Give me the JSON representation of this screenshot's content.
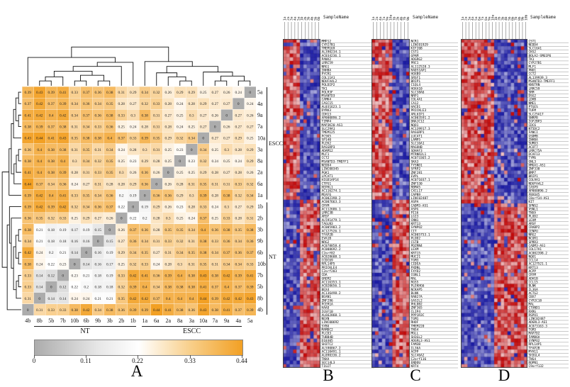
{
  "chart_data": [
    {
      "id": "panelA",
      "type": "heatmap",
      "letter": "A",
      "description_colors": {
        "low": "#ACACAC",
        "mid": "#FFFFFF",
        "high": "#F2A024",
        "diagonal": "#ACACAC"
      },
      "columns": [
        "4b",
        "8b",
        "5b",
        "7b",
        "10b",
        "6b",
        "9b",
        "3b",
        "2b",
        "1b",
        "1a",
        "6a",
        "2a",
        "8a",
        "3a",
        "10a",
        "7a",
        "9a",
        "4a",
        "5a"
      ],
      "rows": [
        "5a",
        "4a",
        "9a",
        "7a",
        "10a",
        "3a",
        "8a",
        "2a",
        "6a",
        "1a",
        "1b",
        "2b",
        "3b",
        "9b",
        "6b",
        "10b",
        "7b",
        "5b",
        "8b",
        "4b"
      ],
      "values": [
        [
          0.39,
          0.43,
          0.39,
          0.41,
          0.33,
          0.37,
          0.36,
          0.38,
          0.31,
          0.29,
          0.34,
          0.32,
          0.26,
          0.29,
          0.29,
          0.25,
          0.27,
          0.26,
          0.24,
          0
        ],
        [
          0.37,
          0.42,
          0.37,
          0.39,
          0.34,
          0.36,
          0.34,
          0.35,
          0.28,
          0.27,
          0.32,
          0.33,
          0.28,
          0.24,
          0.28,
          0.29,
          0.27,
          0.27,
          0,
          0.24
        ],
        [
          0.41,
          0.42,
          0.4,
          0.42,
          0.34,
          0.37,
          0.36,
          0.38,
          0.33,
          0.3,
          0.38,
          0.31,
          0.27,
          0.25,
          0.3,
          0.27,
          0.26,
          0,
          0.27,
          0.26
        ],
        [
          0.38,
          0.39,
          0.37,
          0.38,
          0.31,
          0.34,
          0.33,
          0.36,
          0.25,
          0.24,
          0.28,
          0.31,
          0.28,
          0.24,
          0.25,
          0.27,
          0,
          0.26,
          0.27,
          0.27
        ],
        [
          0.43,
          0.44,
          0.41,
          0.43,
          0.35,
          0.38,
          0.38,
          0.4,
          0.37,
          0.33,
          0.39,
          0.35,
          0.29,
          0.32,
          0.34,
          0,
          0.27,
          0.27,
          0.29,
          0.25
        ],
        [
          0.36,
          0.4,
          0.38,
          0.38,
          0.31,
          0.35,
          0.31,
          0.34,
          0.24,
          0.28,
          0.3,
          0.31,
          0.25,
          0.23,
          0,
          0.34,
          0.25,
          0.3,
          0.28,
          0.29
        ],
        [
          0.38,
          0.4,
          0.38,
          0.4,
          0.3,
          0.34,
          0.32,
          0.35,
          0.25,
          0.23,
          0.29,
          0.28,
          0.25,
          0,
          0.23,
          0.32,
          0.24,
          0.25,
          0.24,
          0.29
        ],
        [
          0.41,
          0.4,
          0.38,
          0.39,
          0.28,
          0.31,
          0.33,
          0.35,
          0.3,
          0.26,
          0.36,
          0.26,
          0,
          0.25,
          0.25,
          0.29,
          0.28,
          0.27,
          0.28,
          0.26
        ],
        [
          0.44,
          0.37,
          0.34,
          0.36,
          0.24,
          0.27,
          0.31,
          0.28,
          0.28,
          0.29,
          0.36,
          0,
          0.26,
          0.28,
          0.31,
          0.35,
          0.31,
          0.31,
          0.33,
          0.32
        ],
        [
          0.39,
          0.42,
          0.4,
          0.41,
          0.33,
          0.35,
          0.34,
          0.36,
          0.2,
          0.19,
          0,
          0.36,
          0.36,
          0.29,
          0.3,
          0.39,
          0.28,
          0.38,
          0.32,
          0.34
        ],
        [
          0.39,
          0.42,
          0.39,
          0.42,
          0.32,
          0.34,
          0.36,
          0.37,
          0.22,
          0,
          0.19,
          0.29,
          0.26,
          0.23,
          0.28,
          0.33,
          0.24,
          0.3,
          0.27,
          0.29
        ],
        [
          0.36,
          0.35,
          0.32,
          0.33,
          0.25,
          0.29,
          0.27,
          0.26,
          0,
          0.22,
          0.2,
          0.28,
          0.3,
          0.25,
          0.24,
          0.37,
          0.25,
          0.33,
          0.28,
          0.31
        ],
        [
          0.38,
          0.21,
          0.18,
          0.19,
          0.17,
          0.19,
          0.15,
          0,
          0.26,
          0.37,
          0.36,
          0.28,
          0.35,
          0.35,
          0.34,
          0.4,
          0.36,
          0.38,
          0.35,
          0.38
        ],
        [
          0.34,
          0.21,
          0.18,
          0.18,
          0.16,
          0.16,
          0,
          0.15,
          0.27,
          0.36,
          0.34,
          0.31,
          0.33,
          0.32,
          0.31,
          0.38,
          0.33,
          0.36,
          0.34,
          0.36
        ],
        [
          0.42,
          0.24,
          0.2,
          0.21,
          0.14,
          0,
          0.16,
          0.19,
          0.29,
          0.34,
          0.35,
          0.27,
          0.31,
          0.34,
          0.35,
          0.38,
          0.34,
          0.37,
          0.36,
          0.37
        ],
        [
          0.38,
          0.24,
          0.22,
          0.23,
          0,
          0.14,
          0.16,
          0.17,
          0.25,
          0.32,
          0.33,
          0.24,
          0.28,
          0.3,
          0.31,
          0.35,
          0.31,
          0.34,
          0.34,
          0.33
        ],
        [
          0.33,
          0.14,
          0.12,
          0,
          0.23,
          0.21,
          0.18,
          0.19,
          0.33,
          0.42,
          0.41,
          0.36,
          0.39,
          0.4,
          0.38,
          0.43,
          0.38,
          0.42,
          0.39,
          0.41
        ],
        [
          0.33,
          0.14,
          0,
          0.12,
          0.22,
          0.2,
          0.18,
          0.18,
          0.32,
          0.39,
          0.4,
          0.34,
          0.38,
          0.38,
          0.38,
          0.41,
          0.37,
          0.4,
          0.37,
          0.39
        ],
        [
          0.31,
          0,
          0.14,
          0.14,
          0.24,
          0.24,
          0.21,
          0.21,
          0.35,
          0.42,
          0.42,
          0.37,
          0.4,
          0.4,
          0.4,
          0.44,
          0.39,
          0.42,
          0.42,
          0.43
        ],
        [
          0,
          0.31,
          0.33,
          0.33,
          0.38,
          0.42,
          0.34,
          0.38,
          0.36,
          0.39,
          0.39,
          0.44,
          0.41,
          0.38,
          0.36,
          0.43,
          0.38,
          0.41,
          0.37,
          0.39
        ]
      ],
      "col_group_labels": [
        {
          "label": "NT"
        },
        {
          "label": "ESCC"
        }
      ],
      "row_group_labels": [
        {
          "label": "ESCC"
        },
        {
          "label": "NT"
        }
      ],
      "colorbar": {
        "min": 0,
        "max": 0.44,
        "ticks": [
          "0",
          "0.11",
          "0.22",
          "0.33",
          "0.44"
        ]
      }
    },
    {
      "id": "panelB",
      "type": "heatmap",
      "letter": "B",
      "sample_header": "SampleName",
      "samples": [
        "1a",
        "2a",
        "3a",
        "4a",
        "5a",
        "1b",
        "2b",
        "3b",
        "4b",
        "5b",
        "6b"
      ],
      "tumor_cols": 5,
      "split_row": 44,
      "up_color": "#C30909",
      "down_color": "#1B1BA4",
      "genes": [
        "MMP12",
        "CYP27B1",
        "TMEM169",
        "AL390234.1",
        "AC034236.1",
        "PANX2",
        "LRRC59",
        "NRG1",
        "INHBA",
        "PYCR1",
        "COL11A1",
        "NDUFA4L2",
        "POLDIP2",
        "TK1",
        "POLR3F",
        "MSANTD3",
        "CAMK4",
        "CASC15",
        "AL031623.1",
        "DYRK3",
        "CDH13",
        "AP000896.2",
        "TIMP4",
        "MAP3K20-AS1",
        "SLC29A1",
        "TMEM125",
        "PCSK5",
        "SP140",
        "PLEK2",
        "RASGRP3",
        "ADAM12",
        "MLF1",
        "CCT2",
        "MSANTD3-TMEFF1",
        "NEDD4",
        "LINC00345",
        "PGK1",
        "LPCAT1",
        "HIGD1AP14",
        "CTPS1",
        "HEPHL1",
        "AC116274.1",
        "MEAF6",
        "AC002398.2",
        "AC007663.3",
        "CRYM",
        "AC112686.1",
        "LRRC3B",
        "ARSF",
        "AL591479.1",
        "TAGLN3",
        "AC005903.2",
        "AC127526.1",
        "TFAP2B",
        "EVA1B",
        "NRG2",
        "AC078858.4",
        "AC008692.2",
        "C2orf82",
        "AC028608.1",
        "CCDC69",
        "RPL14P5",
        "PRICKLE4",
        "C2orf203",
        "CDA",
        "GREM2",
        "AC116353.1",
        "AC020656.1",
        "BEX4",
        "AC136498.2",
        "BEAN1",
        "ZNF296",
        "PCER1A",
        "HAAO",
        "IGSF10",
        "AL662860.1",
        "NEXN",
        "LINC00692",
        "SYBU",
        "MAMDC2",
        "PLCD3",
        "TUBB4B",
        "D10305",
        "SH3TC2",
        "AL590867.2",
        "AC110491.1",
        "AL090336.2",
        "TNXA",
        "SEC14L3",
        "TIGIT"
      ]
    },
    {
      "id": "panelC",
      "type": "heatmap",
      "letter": "C",
      "sample_header": "SampleName",
      "samples": [
        "1a",
        "2a",
        "4a",
        "7a",
        "9a",
        "10a",
        "1b",
        "2b",
        "4b",
        "7b",
        "9b"
      ],
      "tumor_cols": 6,
      "split_row": 44,
      "up_color": "#C30909",
      "down_color": "#1B1BA4",
      "genes": [
        "NCR1",
        "LINC01929",
        "KIF26B",
        "CST1",
        "GPAM",
        "ADGRG2",
        "PRC1",
        "AL112528.3",
        "RAD51AP1",
        "HOXB9",
        "SRSF1",
        "BRIP1",
        "C1QL4",
        "HOXA10",
        "SLC38A6",
        "NRP1",
        "COL4A1",
        "CA12",
        "HACD1",
        "PRICKLE3",
        "ARL6IP1",
        "AC003591.2",
        "DNAJC12",
        "NQO1",
        "AC139917.3",
        "RASGRP1",
        "LUCAT1",
        "LAMP5",
        "SLC16A1",
        "MAGOHB",
        "SDHAF3",
        "MTRNR2L1",
        "AC073365.2",
        "SKA3",
        "TYSND1",
        "SFRP2",
        "ZNF281",
        "EVPL",
        "AC071037.1",
        "ZNF530",
        "RBM45",
        "CXCL17",
        "CAPN9",
        "LINC02487",
        "ASPA",
        "CADM3-AS1",
        "ASPG",
        "PI16",
        "LGI3",
        "CNN1",
        "KRT13",
        "SYNPO2",
        "CIT",
        "AC005753.1",
        "PLOD2",
        "CSTB",
        "PDZRN4",
        "LEXM",
        "KRT15",
        "MUC21",
        "TGM3",
        "CIDEA",
        "PXDNL",
        "FXYD2",
        "CGNL1",
        "MAL",
        "RGS5",
        "PLEKHG6",
        "NCKAP5",
        "BLNK",
        "RAB27A",
        "GAS2L2",
        "PHLDB2",
        "ZNF365",
        "CLIP4",
        "PPP1R3C",
        "TGM1",
        "RHOF",
        "TMEM220",
        "TNS4",
        "MGLL",
        "SH3GL2",
        "ADGRL3-AS1",
        "FAM3B",
        "IL36A",
        "ACPP",
        "SLC46A2",
        "C2orf116",
        "ENDOU",
        "KRT4"
      ]
    },
    {
      "id": "panelD",
      "type": "heatmap",
      "letter": "D",
      "sample_header": "SampleName",
      "samples": [
        "1a",
        "2a",
        "3a",
        "4a",
        "5a",
        "6a",
        "7a",
        "8a",
        "9a",
        "10a",
        "1b",
        "2b",
        "3b",
        "4b",
        "5b",
        "6b",
        "7b",
        "8b",
        "9b",
        "10b"
      ],
      "tumor_cols": 10,
      "split_row": 45,
      "up_color": "#C30909",
      "down_color": "#1B1BA4",
      "genes": [
        "CST1",
        "NEDD4",
        "SLC16A1",
        "CKS2",
        "BOLA2-SMG1P6",
        "TK1",
        "CYP27B1",
        "MLF1",
        "PNO1",
        "CCT2",
        "AL139939.3",
        "MSANTD3-TMEFF1",
        "KNSTRN",
        "LRRC59",
        "SRM",
        "DSG2",
        "LDHB",
        "NME1",
        "PTGES",
        "TUFM",
        "SLC25A17",
        "SNRPB",
        "IGF2BP3",
        "CDC6",
        "NT5DC2",
        "FANCI",
        "GSDMB",
        "INHBA",
        "SUMO3",
        "ACOT7",
        "LRRC75A",
        "DCAF13",
        "TYMS",
        "GNL3",
        "HMGA1-AS1",
        "ZNF330",
        "BMP7",
        "BRIP1",
        "COL9A1",
        "NDUFA4L2",
        "CASP9",
        "AP000896.2",
        "FBXO45",
        "C8orf34-AS1",
        "KIT",
        "SPNS2",
        "VSNL1",
        "TNXA",
        "PLOD2",
        "LEXM",
        "ARSF",
        "CRABP2",
        "CENPU",
        "NRG2",
        "NCOR1",
        "SPRR3",
        "CADM3-AS1",
        "COL17A1",
        "AC002398.2",
        "NQO1",
        "CCL14",
        "AC127521.1",
        "KRT13",
        "ACPP",
        "CRYM",
        "ADH1B",
        "CCL15",
        "BLNK",
        "IL36A",
        "ACTG2",
        "CBX7",
        "CYP2C18",
        "MAL",
        "CTXND1",
        "RXRG",
        "RSPO1",
        "LINC02487",
        "ADGRL3-AS1",
        "AC073163.3",
        "TGM3",
        "MAP7D2",
        "FAM86A",
        "SYNPO2",
        "RPL14P1",
        "TFAP2B",
        "MYH11",
        "SH3GL4",
        "TNS4",
        "ROPN1",
        "C9orf132"
      ]
    }
  ]
}
